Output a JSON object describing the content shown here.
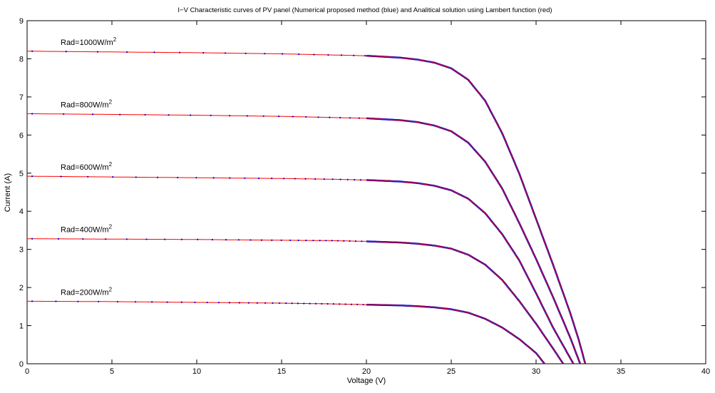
{
  "chart_data": {
    "type": "line",
    "title": "I−V Characteristic curves of PV panel (Numerical proposed method (blue) and Analitical solution using Lambert function (red)",
    "xlabel": "Voltage (V)",
    "ylabel": "Current (A)",
    "xlim": [
      0,
      40
    ],
    "ylim": [
      0,
      9
    ],
    "xticks": [
      0,
      5,
      10,
      15,
      20,
      25,
      30,
      35,
      40
    ],
    "yticks": [
      0,
      1,
      2,
      3,
      4,
      5,
      6,
      7,
      8,
      9
    ],
    "grid": false,
    "legend": "none",
    "colors": {
      "analytical": "#ff0000",
      "numerical": "#0000cc",
      "axis": "#000000"
    },
    "series": [
      {
        "annotation": "Rad=1000W/m",
        "annotation_sup": "2",
        "isc": 8.2,
        "voc": 32.9,
        "points": [
          [
            0,
            8.2
          ],
          [
            5,
            8.18
          ],
          [
            10,
            8.16
          ],
          [
            15,
            8.13
          ],
          [
            18,
            8.1
          ],
          [
            20,
            8.08
          ],
          [
            22,
            8.03
          ],
          [
            23,
            7.98
          ],
          [
            24,
            7.9
          ],
          [
            25,
            7.75
          ],
          [
            26,
            7.45
          ],
          [
            27,
            6.9
          ],
          [
            28,
            6.05
          ],
          [
            29,
            5.0
          ],
          [
            30,
            3.8
          ],
          [
            31,
            2.6
          ],
          [
            32,
            1.35
          ],
          [
            32.5,
            0.65
          ],
          [
            32.9,
            0
          ]
        ]
      },
      {
        "annotation": "Rad=800W/m",
        "annotation_sup": "2",
        "isc": 6.56,
        "voc": 32.6,
        "points": [
          [
            0,
            6.56
          ],
          [
            5,
            6.54
          ],
          [
            10,
            6.52
          ],
          [
            15,
            6.49
          ],
          [
            18,
            6.46
          ],
          [
            20,
            6.44
          ],
          [
            22,
            6.39
          ],
          [
            23,
            6.34
          ],
          [
            24,
            6.25
          ],
          [
            25,
            6.1
          ],
          [
            26,
            5.8
          ],
          [
            27,
            5.3
          ],
          [
            28,
            4.6
          ],
          [
            29,
            3.7
          ],
          [
            30,
            2.75
          ],
          [
            31,
            1.75
          ],
          [
            32,
            0.7
          ],
          [
            32.6,
            0
          ]
        ]
      },
      {
        "annotation": "Rad=600W/m",
        "annotation_sup": "2",
        "isc": 4.92,
        "voc": 32.2,
        "points": [
          [
            0,
            4.92
          ],
          [
            5,
            4.9
          ],
          [
            10,
            4.88
          ],
          [
            15,
            4.86
          ],
          [
            18,
            4.84
          ],
          [
            20,
            4.82
          ],
          [
            22,
            4.78
          ],
          [
            23,
            4.74
          ],
          [
            24,
            4.67
          ],
          [
            25,
            4.55
          ],
          [
            26,
            4.33
          ],
          [
            27,
            3.95
          ],
          [
            28,
            3.4
          ],
          [
            29,
            2.72
          ],
          [
            30,
            1.85
          ],
          [
            31,
            0.95
          ],
          [
            32.2,
            0
          ]
        ]
      },
      {
        "annotation": "Rad=400W/m",
        "annotation_sup": "2",
        "isc": 3.28,
        "voc": 31.6,
        "points": [
          [
            0,
            3.28
          ],
          [
            5,
            3.27
          ],
          [
            10,
            3.26
          ],
          [
            15,
            3.24
          ],
          [
            18,
            3.23
          ],
          [
            20,
            3.21
          ],
          [
            22,
            3.18
          ],
          [
            23,
            3.15
          ],
          [
            24,
            3.1
          ],
          [
            25,
            3.02
          ],
          [
            26,
            2.86
          ],
          [
            27,
            2.6
          ],
          [
            28,
            2.2
          ],
          [
            29,
            1.65
          ],
          [
            30,
            1.05
          ],
          [
            31,
            0.4
          ],
          [
            31.6,
            0
          ]
        ]
      },
      {
        "annotation": "Rad=200W/m",
        "annotation_sup": "2",
        "isc": 1.64,
        "voc": 30.5,
        "points": [
          [
            0,
            1.64
          ],
          [
            5,
            1.63
          ],
          [
            10,
            1.61
          ],
          [
            15,
            1.59
          ],
          [
            18,
            1.57
          ],
          [
            20,
            1.55
          ],
          [
            22,
            1.53
          ],
          [
            23,
            1.51
          ],
          [
            24,
            1.48
          ],
          [
            25,
            1.43
          ],
          [
            26,
            1.34
          ],
          [
            27,
            1.18
          ],
          [
            28,
            0.95
          ],
          [
            29,
            0.65
          ],
          [
            30,
            0.28
          ],
          [
            30.5,
            0
          ]
        ]
      }
    ]
  }
}
